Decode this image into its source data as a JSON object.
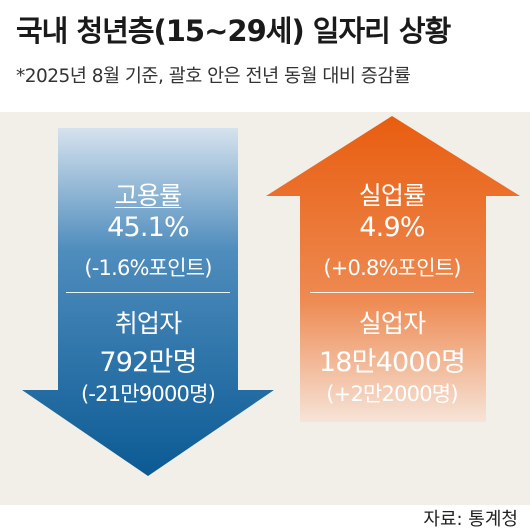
{
  "title": "국내 청년층(15~29세) 일자리 상황",
  "subtitle": "*2025년 8월 기준, 괄호 안은 전년 동월 대비 증감률",
  "left_arrow": {
    "direction": "down",
    "color_top": "#d6e2ee",
    "color_bottom": "#0b5a94",
    "metric1": {
      "label": "고용률",
      "value": "45.1%",
      "change": "(-1.6%포인트)"
    },
    "metric2": {
      "label": "취업자",
      "value": "792만명",
      "change": "(-21만9000명)"
    }
  },
  "right_arrow": {
    "direction": "up",
    "color_top": "#e85d0f",
    "color_bottom": "#f6e4d8",
    "metric1": {
      "label": "실업률",
      "value": "4.9%",
      "change": "(+0.8%포인트)"
    },
    "metric2": {
      "label": "실업자",
      "value": "18만4000명",
      "change": "(+2만2000명)"
    }
  },
  "source": "자료: 통계청"
}
